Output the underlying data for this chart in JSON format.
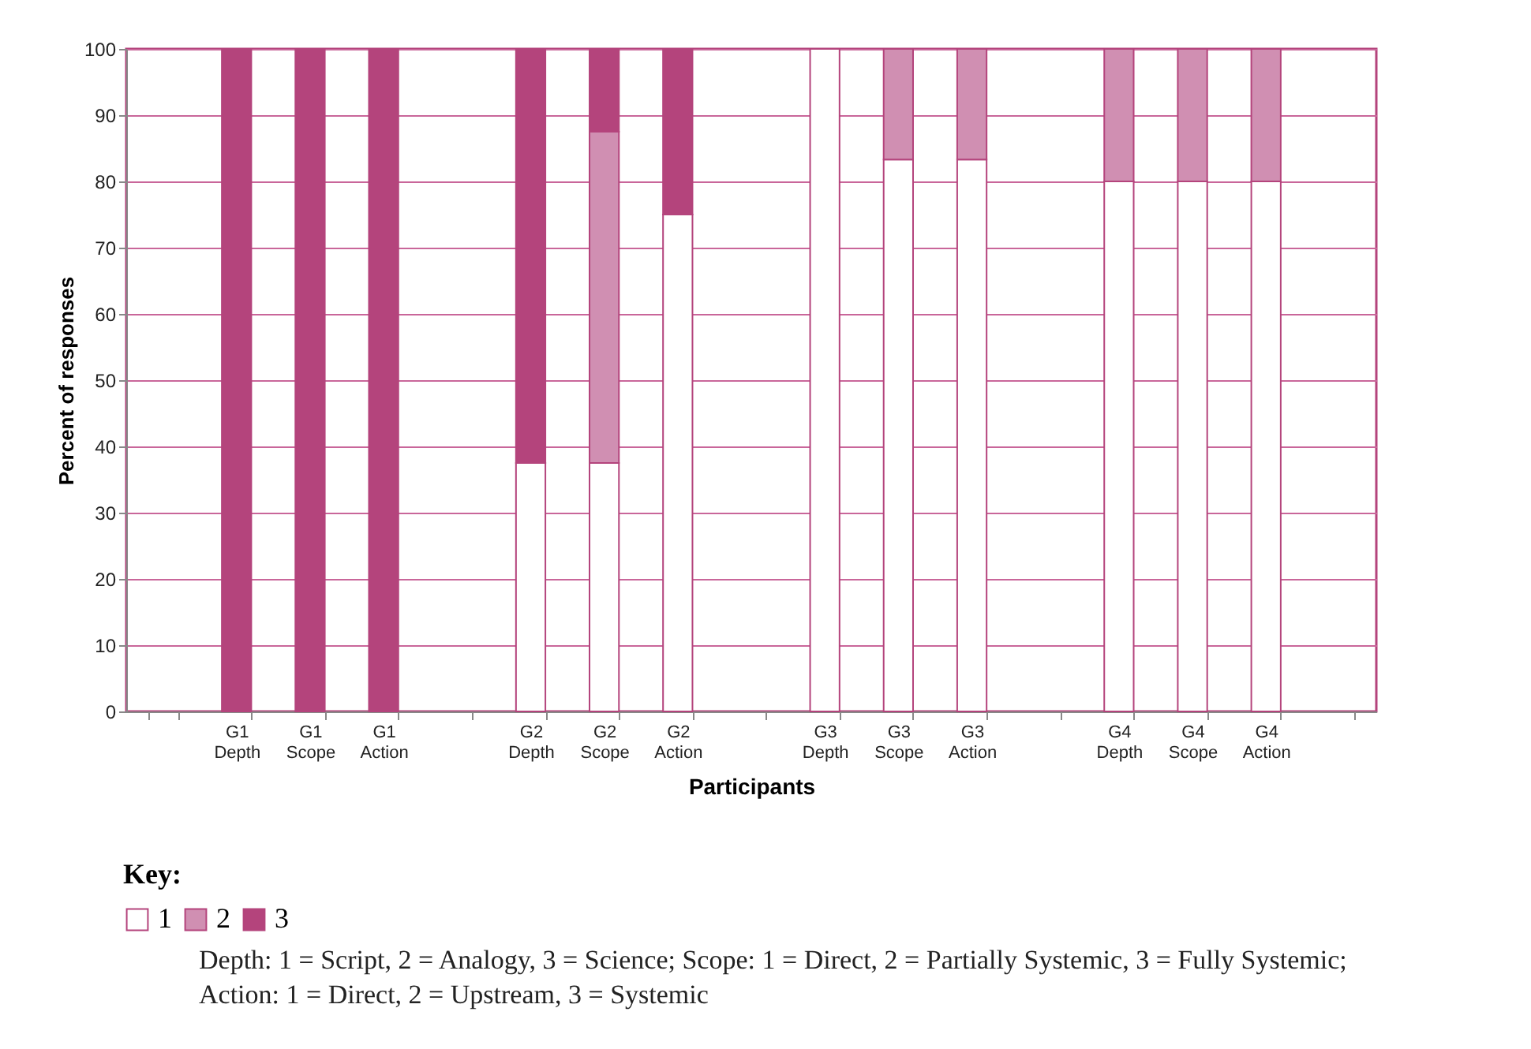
{
  "chart_data": {
    "type": "bar",
    "stacked": true,
    "xlabel": "Participants",
    "ylabel": "Percent of responses",
    "legend_title": "Key:",
    "categories": [
      null,
      "G1 Depth",
      "G1 Scope",
      "G1 Action",
      null,
      "G2 Depth",
      "G2 Scope",
      "G2 Action",
      null,
      "G3 Depth",
      "G3 Scope",
      "G3 Action",
      null,
      "G4 Depth",
      "G4 Scope",
      "G4 Action",
      null
    ],
    "series": [
      {
        "name": "1",
        "color": "#ffffff",
        "values": [
          null,
          0,
          0,
          0,
          null,
          37.5,
          37.5,
          75,
          null,
          100,
          83.3,
          83.3,
          null,
          80,
          80,
          80,
          null
        ]
      },
      {
        "name": "2",
        "color": "#d08fb2",
        "values": [
          null,
          0,
          0,
          0,
          null,
          0,
          50,
          0,
          null,
          0,
          16.7,
          16.7,
          null,
          20,
          20,
          20,
          null
        ]
      },
      {
        "name": "3",
        "color": "#b4447c",
        "values": [
          null,
          100,
          100,
          100,
          null,
          62.5,
          12.5,
          25,
          null,
          0,
          0,
          0,
          null,
          0,
          0,
          0,
          null
        ]
      }
    ],
    "ylim": [
      0,
      100
    ],
    "yticks": [
      0,
      10,
      20,
      30,
      40,
      50,
      60,
      70,
      80,
      90,
      100
    ],
    "grid": "y",
    "legend": "bottom left",
    "annotations": [
      "Depth: 1 = Script, 2 = Analogy, 3 = Science; Scope: 1 = Direct, 2 = Partially Systemic, 3 = Fully Systemic; Action: 1 = Direct, 2 = Upstream, 3 = Systemic"
    ]
  }
}
